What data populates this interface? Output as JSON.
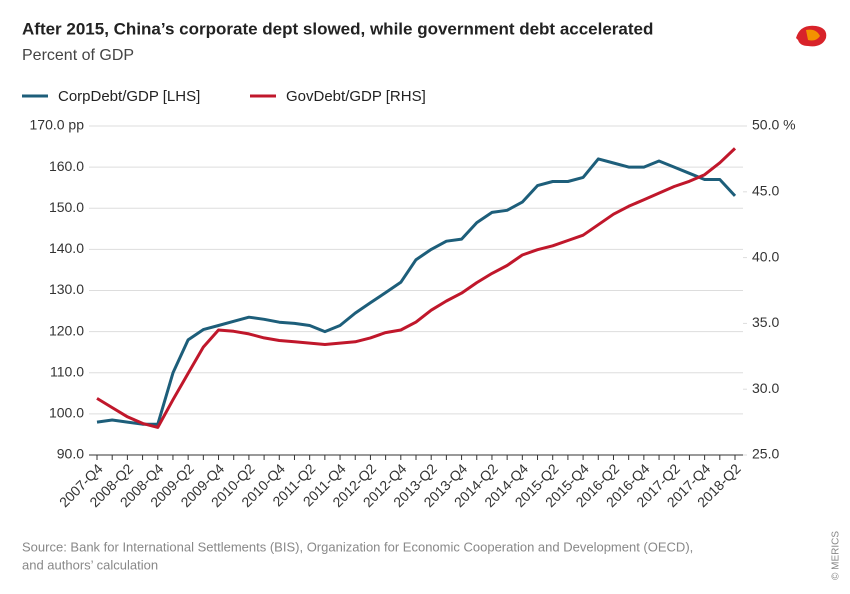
{
  "chart_data": {
    "type": "line",
    "title": "After 2015, China’s corporate dept slowed, while government debt accelerated",
    "subtitle": "Percent of GDP",
    "source": "Source: Bank for International Settlements (BIS), Organization for Economic Cooperation and Development (OECD),",
    "source_line2": "and authors’ calculation",
    "credit": "© MERICS",
    "categories": [
      "2007-Q4",
      null,
      "2008-Q2",
      null,
      "2008-Q4",
      null,
      "2009-Q2",
      null,
      "2009-Q4",
      null,
      "2010-Q2",
      null,
      "2010-Q4",
      null,
      "2011-Q2",
      null,
      "2011-Q4",
      null,
      "2012-Q2",
      null,
      "2012-Q4",
      null,
      "2013-Q2",
      null,
      "2013-Q4",
      null,
      "2014-Q2",
      null,
      "2014-Q4",
      null,
      "2015-Q2",
      null,
      "2015-Q4",
      null,
      "2016-Q2",
      null,
      "2016-Q4",
      null,
      "2017-Q2",
      null,
      "2017-Q4",
      null,
      "2018-Q2"
    ],
    "series": [
      {
        "name": "CorpDebt/GDP [LHS]",
        "color": "#1d5e7a",
        "axis": "y",
        "values": [
          98,
          98.5,
          98,
          97.5,
          97.5,
          110,
          118,
          120.5,
          121.5,
          122.5,
          123.5,
          123,
          122.3,
          122,
          121.5,
          120,
          121.5,
          124.5,
          127,
          129.5,
          132,
          137.5,
          140,
          142,
          142.5,
          146.5,
          149,
          149.5,
          151.5,
          155.5,
          156.5,
          156.5,
          157.5,
          162,
          161,
          160,
          160,
          161.5,
          160,
          158.5,
          157,
          157,
          153
        ]
      },
      {
        "name": "GovDebt/GDP [RHS]",
        "color": "#c0172b",
        "axis": "y2",
        "values": [
          29.3,
          28.6,
          27.9,
          27.4,
          27.1,
          29.2,
          31.2,
          33.2,
          34.5,
          34.4,
          34.2,
          33.9,
          33.7,
          33.6,
          33.5,
          33.4,
          33.5,
          33.6,
          33.9,
          34.3,
          34.5,
          35.1,
          36,
          36.7,
          37.3,
          38.1,
          38.8,
          39.4,
          40.2,
          40.6,
          40.9,
          41.3,
          41.7,
          42.5,
          43.3,
          43.9,
          44.4,
          44.9,
          45.4,
          45.8,
          46.3,
          47.2,
          48.3
        ]
      }
    ],
    "ylim": [
      90,
      170
    ],
    "yticks": [
      {
        "value": 90,
        "label": "90.0"
      },
      {
        "value": 100,
        "label": "100.0"
      },
      {
        "value": 110,
        "label": "110.0"
      },
      {
        "value": 120,
        "label": "120.0"
      },
      {
        "value": 130,
        "label": "130.0"
      },
      {
        "value": 140,
        "label": "140.0"
      },
      {
        "value": 150,
        "label": "150.0"
      },
      {
        "value": 160,
        "label": "160.0"
      },
      {
        "value": 170,
        "label": "170.0 pp"
      }
    ],
    "y2lim": [
      25,
      50
    ],
    "y2ticks": [
      {
        "value": 25,
        "label": "25.0"
      },
      {
        "value": 30,
        "label": "30.0"
      },
      {
        "value": 35,
        "label": "35.0"
      },
      {
        "value": 40,
        "label": "40.0"
      },
      {
        "value": 45,
        "label": "45.0"
      },
      {
        "value": 50,
        "label": "50.0 %"
      }
    ],
    "grid": true
  }
}
